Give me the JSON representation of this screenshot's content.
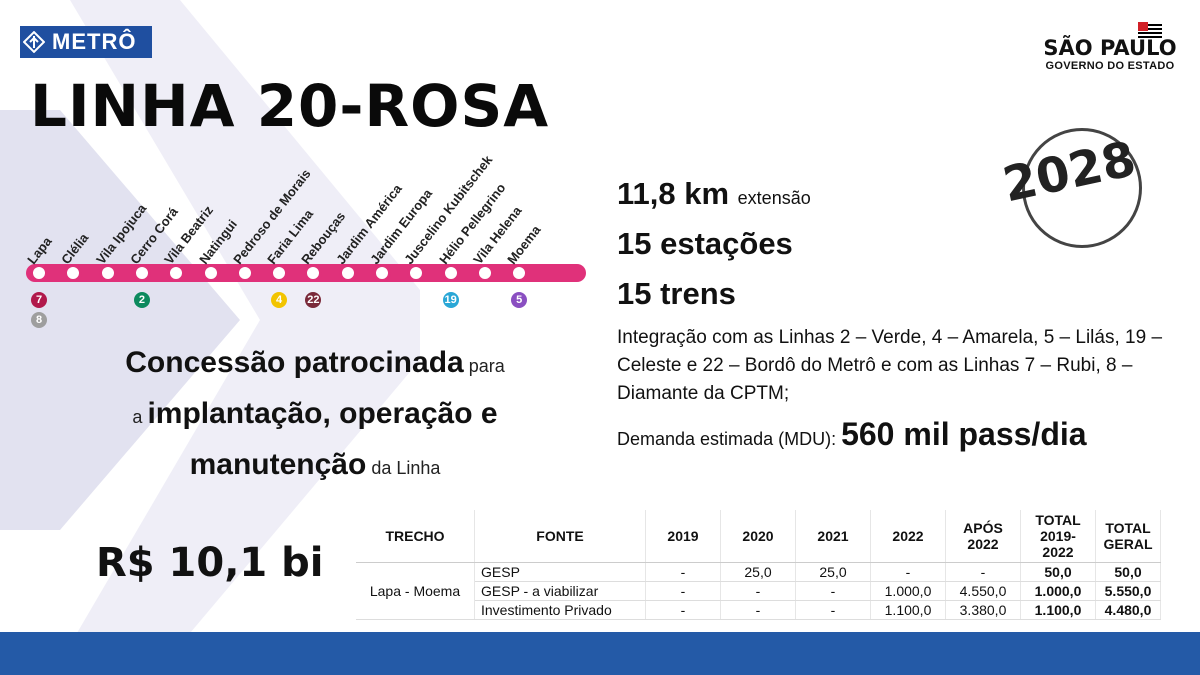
{
  "logo": {
    "text": "METRÔ",
    "icon": "metro-diamond-icon"
  },
  "title": "LINHA 20-ROSA",
  "sp_logo": {
    "main": "SÃO PAULO",
    "sub": "GOVERNO DO ESTADO"
  },
  "year": "2028",
  "stations": [
    "Lapa",
    "Clélia",
    "Vila Ipojuca",
    "Cerro Corá",
    "Vila Beatriz",
    "Natingui",
    "Pedroso de Morais",
    "Faria Lima",
    "Rebouças",
    "Jardim América",
    "Jardim Europa",
    "Juscelino Kubitschek",
    "Hélio Pellegrino",
    "Vila Helena",
    "Moema"
  ],
  "badges": [
    {
      "label": "7",
      "color": "#b1194b"
    },
    {
      "label": "8",
      "color": "#9e9e9e"
    },
    {
      "label": "2",
      "color": "#0c8a5e"
    },
    {
      "label": "4",
      "color": "#f2c400"
    },
    {
      "label": "22",
      "color": "#7a2a3a"
    },
    {
      "label": "19",
      "color": "#2aa7d6"
    },
    {
      "label": "5",
      "color": "#8a4fc1"
    }
  ],
  "concession": {
    "part1": "Concessão patrocinada",
    "part2": " para",
    "part3": "a ",
    "part4": "implantação, operação e",
    "part5": "manutenção",
    "part6": " da Linha"
  },
  "facts": {
    "length_value": "11,8 km",
    "length_unit": "extensão",
    "stations": "15 estações",
    "trains": "15 trens",
    "integration": "Integração com as Linhas 2 – Verde, 4 – Amarela, 5 – Lilás, 19 – Celeste e 22 – Bordô do Metrô e com as Linhas 7 – Rubi, 8 – Diamante da CPTM;",
    "demand_label": "Demanda estimada (MDU): ",
    "demand_value": "560 mil pass/dia"
  },
  "price": "R$ 10,1 bi",
  "table": {
    "headers": [
      "TRECHO",
      "FONTE",
      "2019",
      "2020",
      "2021",
      "2022",
      "APÓS 2022",
      "TOTAL 2019-2022",
      "TOTAL GERAL"
    ],
    "trecho": "Lapa - Moema",
    "rows": [
      [
        "GESP",
        "-",
        "25,0",
        "25,0",
        "-",
        "-",
        "50,0",
        "50,0"
      ],
      [
        "GESP - a viabilizar",
        "-",
        "-",
        "-",
        "1.000,0",
        "4.550,0",
        "1.000,0",
        "5.550,0"
      ],
      [
        "Investimento Privado",
        "-",
        "-",
        "-",
        "1.100,0",
        "3.380,0",
        "1.100,0",
        "4.480,0"
      ]
    ]
  },
  "colors": {
    "line": "#e0317a",
    "footer": "#245aa7",
    "logo": "#1f4fa0"
  }
}
